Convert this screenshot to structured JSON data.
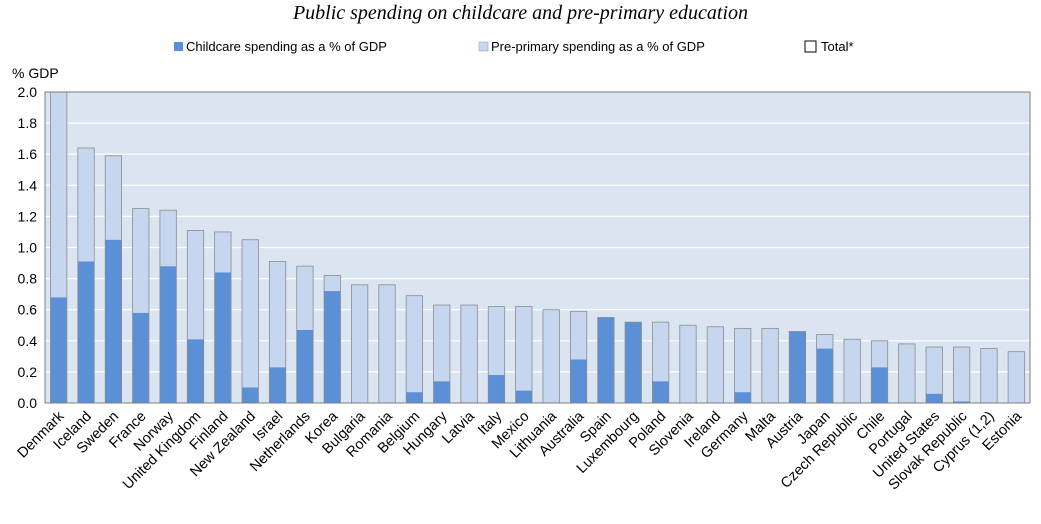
{
  "chart_data": {
    "type": "bar",
    "stacked": true,
    "title": "Public spending on childcare and pre-primary education",
    "ylabel": "% GDP",
    "ylim": [
      0,
      2.0
    ],
    "yticks": [
      "0.0",
      "0.2",
      "0.4",
      "0.6",
      "0.8",
      "1.0",
      "1.2",
      "1.4",
      "1.6",
      "1.8",
      "2.0"
    ],
    "grid": true,
    "legend_position": "top",
    "legend": {
      "childcare": "Childcare spending as a % of GDP",
      "preprimary": "Pre-primary spending as a % of GDP",
      "total": "Total*"
    },
    "colors": {
      "childcare": "#5b8fd6",
      "preprimary": "#c5d6ee",
      "plot_background": "#dbe5f1",
      "border": "#7f7f7f"
    },
    "categories": [
      "Denmark",
      "Iceland",
      "Sweden",
      "France",
      "Norway",
      "United Kingdom",
      "Finland",
      "New Zealand",
      "Israel",
      "Netherlands",
      "Korea",
      "Bulgaria",
      "Romania",
      "Belgium",
      "Hungary",
      "Latvia",
      "Italy",
      "Mexico",
      "Lithuania",
      "Australia",
      "Spain",
      "Luxembourg",
      "Poland",
      "Slovenia",
      "Ireland",
      "Germany",
      "Malta",
      "Austria",
      "Japan",
      "Czech Republic",
      "Chile",
      "Portugal",
      "United States",
      "Slovak Republic",
      "Cyprus (1,2)",
      "Estonia"
    ],
    "series": [
      {
        "name": "Childcare spending as a % of GDP",
        "values": [
          0.68,
          0.91,
          1.05,
          0.58,
          0.88,
          0.41,
          0.84,
          0.1,
          0.23,
          0.47,
          0.72,
          0,
          0,
          0.07,
          0.14,
          0,
          0.18,
          0.08,
          0,
          0.28,
          0.55,
          0.52,
          0.14,
          0,
          0,
          0.07,
          0,
          0.46,
          0.35,
          0,
          0.23,
          0,
          0.06,
          0.01,
          0,
          0
        ]
      },
      {
        "name": "Pre-primary spending as a % of GDP",
        "values": [
          1.32,
          0.73,
          0.54,
          0.67,
          0.36,
          0.7,
          0.26,
          0.95,
          0.68,
          0.41,
          0.1,
          0.76,
          0.76,
          0.62,
          0.49,
          0.63,
          0.44,
          0.54,
          0.6,
          0.31,
          0,
          0,
          0.38,
          0.5,
          0.49,
          0.41,
          0.48,
          0,
          0.09,
          0.41,
          0.17,
          0.38,
          0.3,
          0.35,
          0.35,
          0.33
        ]
      }
    ]
  }
}
